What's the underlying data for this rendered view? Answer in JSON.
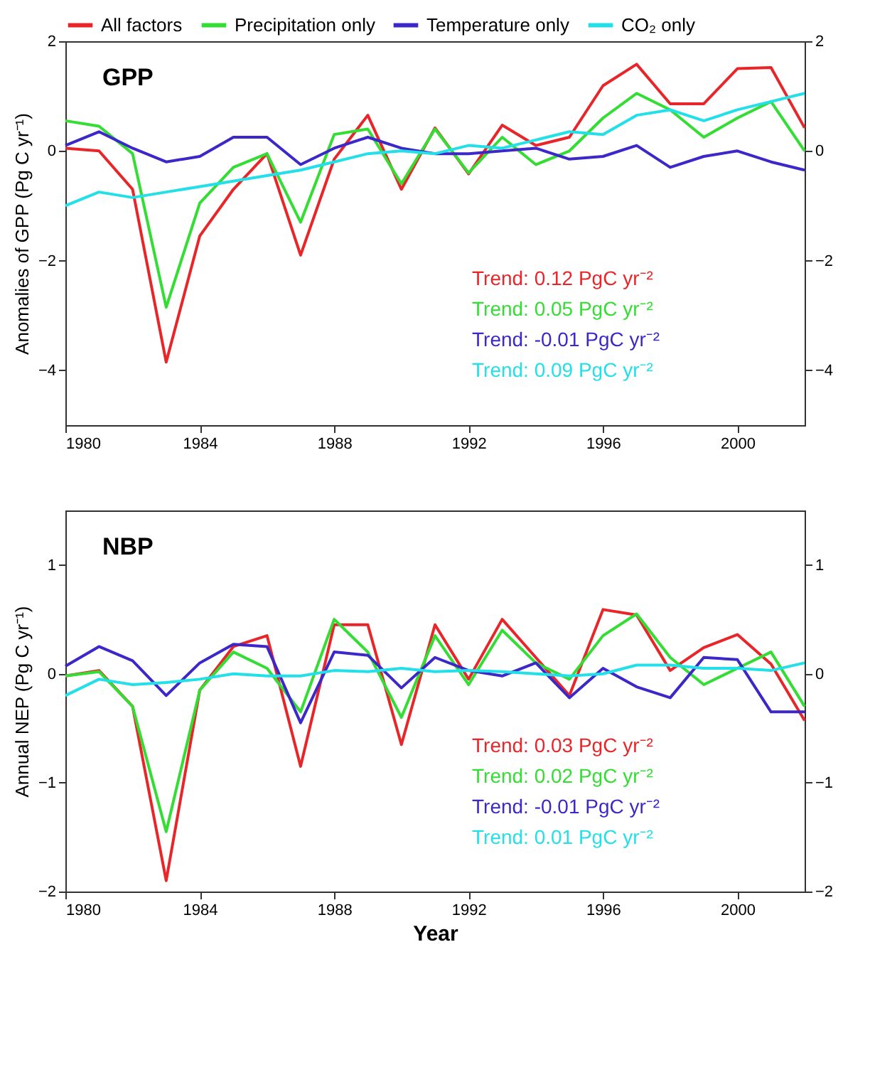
{
  "chart_data": [
    {
      "type": "line",
      "title": "GPP",
      "ylabel": "Anomalies of GPP (Pg C yr⁻¹)",
      "legend": "top",
      "x": [
        1980,
        1981,
        1982,
        1983,
        1984,
        1985,
        1986,
        1987,
        1988,
        1989,
        1990,
        1991,
        1992,
        1993,
        1994,
        1995,
        1996,
        1997,
        1998,
        1999,
        2000,
        2001,
        2002
      ],
      "xlim": [
        1980,
        2002
      ],
      "xticks": [
        1980,
        1984,
        1988,
        1992,
        1996,
        2000
      ],
      "ylim": [
        -5,
        2
      ],
      "yticks": [
        -4,
        -2,
        0,
        2
      ],
      "y2lim": [
        -5,
        2
      ],
      "y2ticks": [
        -4,
        -2,
        0,
        2
      ],
      "series": [
        {
          "name": "All factors",
          "color": "#e8262a",
          "values": [
            0.05,
            0.0,
            -0.7,
            -3.85,
            -1.55,
            -0.7,
            -0.05,
            -1.9,
            -0.15,
            0.65,
            -0.7,
            0.42,
            -0.42,
            0.47,
            0.1,
            0.25,
            1.19,
            1.58,
            0.86,
            0.86,
            1.5,
            1.52,
            0.42
          ]
        },
        {
          "name": "Precipitation only",
          "color": "#33dd33",
          "values": [
            0.55,
            0.45,
            -0.05,
            -2.85,
            -0.95,
            -0.3,
            -0.05,
            -1.3,
            0.3,
            0.4,
            -0.6,
            0.4,
            -0.4,
            0.25,
            -0.25,
            0.0,
            0.6,
            1.05,
            0.75,
            0.25,
            0.6,
            0.9,
            0.0
          ]
        },
        {
          "name": "Temperature only",
          "color": "#3c28c8",
          "values": [
            0.1,
            0.35,
            0.05,
            -0.2,
            -0.1,
            0.25,
            0.25,
            -0.25,
            0.05,
            0.25,
            0.05,
            -0.05,
            -0.05,
            0.0,
            0.05,
            -0.15,
            -0.1,
            0.1,
            -0.3,
            -0.1,
            0.0,
            -0.2,
            -0.35
          ]
        },
        {
          "name": "CO₂ only",
          "color": "#22dfe8",
          "values": [
            -1.0,
            -0.75,
            -0.85,
            -0.75,
            -0.65,
            -0.55,
            -0.45,
            -0.35,
            -0.2,
            -0.05,
            0.0,
            -0.05,
            0.1,
            0.05,
            0.2,
            0.35,
            0.3,
            0.65,
            0.75,
            0.55,
            0.75,
            0.9,
            1.05
          ]
        }
      ],
      "annotations": [
        "Trend:  0.12 PgC yr⁻²",
        "Trend:  0.05 PgC yr⁻²",
        "Trend: -0.01 PgC yr⁻²",
        "Trend:  0.09 PgC yr⁻²"
      ]
    },
    {
      "type": "line",
      "title": "NBP",
      "xlabel": "Year",
      "ylabel": "Annual NEP (Pg C yr⁻¹)",
      "x": [
        1980,
        1981,
        1982,
        1983,
        1984,
        1985,
        1986,
        1987,
        1988,
        1989,
        1990,
        1991,
        1992,
        1993,
        1994,
        1995,
        1996,
        1997,
        1998,
        1999,
        2000,
        2001,
        2002
      ],
      "xlim": [
        1980,
        2002
      ],
      "xticks": [
        1980,
        1984,
        1988,
        1992,
        1996,
        2000
      ],
      "ylim": [
        -2,
        1.5
      ],
      "yticks": [
        -2,
        -1,
        0,
        1
      ],
      "y2lim": [
        -2,
        1.5
      ],
      "y2ticks": [
        -2,
        -1,
        0,
        1
      ],
      "series": [
        {
          "color": "#e8262a",
          "values": [
            -0.02,
            0.03,
            -0.3,
            -1.9,
            -0.15,
            0.25,
            0.35,
            -0.85,
            0.45,
            0.45,
            -0.65,
            0.45,
            -0.05,
            0.5,
            0.15,
            -0.2,
            0.59,
            0.54,
            0.03,
            0.24,
            0.36,
            0.09,
            -0.43
          ]
        },
        {
          "color": "#33dd33",
          "values": [
            -0.02,
            0.02,
            -0.3,
            -1.45,
            -0.15,
            0.2,
            0.05,
            -0.35,
            0.5,
            0.2,
            -0.4,
            0.35,
            -0.1,
            0.4,
            0.1,
            -0.05,
            0.35,
            0.55,
            0.15,
            -0.1,
            0.05,
            0.2,
            -0.3
          ]
        },
        {
          "color": "#3c28c8",
          "values": [
            0.07,
            0.25,
            0.12,
            -0.2,
            0.1,
            0.27,
            0.25,
            -0.45,
            0.2,
            0.17,
            -0.13,
            0.15,
            0.03,
            -0.02,
            0.1,
            -0.22,
            0.05,
            -0.12,
            -0.22,
            0.15,
            0.13,
            -0.35,
            -0.35
          ]
        },
        {
          "color": "#22dfe8",
          "values": [
            -0.2,
            -0.05,
            -0.1,
            -0.08,
            -0.05,
            0.0,
            -0.02,
            -0.02,
            0.03,
            0.02,
            0.05,
            0.02,
            0.03,
            0.02,
            0.0,
            -0.02,
            0.0,
            0.08,
            0.08,
            0.05,
            0.05,
            0.03,
            0.1
          ]
        }
      ],
      "annotations": [
        "Trend:  0.03 PgC yr⁻²",
        "Trend:  0.02 PgC yr⁻²",
        "Trend: -0.01 PgC yr⁻²",
        "Trend:  0.01 PgC yr⁻²"
      ]
    }
  ]
}
